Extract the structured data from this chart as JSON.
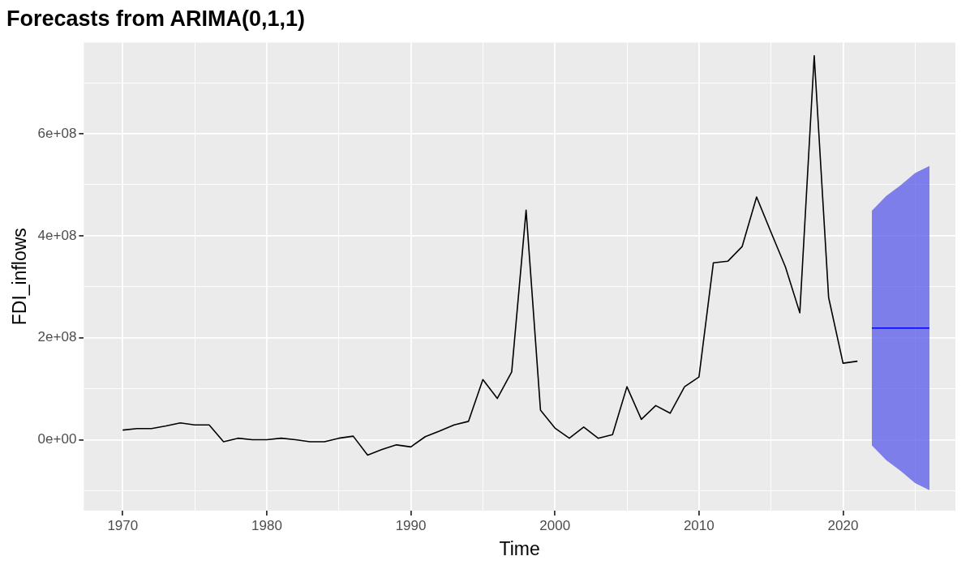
{
  "chart_data": {
    "type": "line",
    "title": "Forecasts from ARIMA(0,1,1)",
    "xlabel": "Time",
    "ylabel": "FDI_inflows",
    "xlim": [
      1967.3,
      2027.8
    ],
    "xticks": [
      1970,
      {
        "value": 1975,
        "label": null
      },
      1980,
      {
        "value": 1985,
        "label": null
      },
      1990,
      {
        "value": 1995,
        "label": null
      },
      2000,
      {
        "value": 2005,
        "label": null
      },
      2010,
      {
        "value": 2015,
        "label": null
      },
      2020,
      {
        "value": 2025,
        "label": null
      }
    ],
    "ylim": [
      -139000000,
      779000000
    ],
    "yticks": [
      {
        "value": -100000000,
        "label": null
      },
      {
        "value": 0,
        "label": "0e+00"
      },
      {
        "value": 100000000,
        "label": null
      },
      {
        "value": 200000000,
        "label": "2e+08"
      },
      {
        "value": 300000000,
        "label": null
      },
      {
        "value": 400000000,
        "label": "4e+08"
      },
      {
        "value": 500000000,
        "label": null
      },
      {
        "value": 600000000,
        "label": "6e+08"
      },
      {
        "value": 700000000,
        "label": null
      }
    ],
    "grid": true,
    "legend": false,
    "series": [
      {
        "color": "#000000",
        "x": [
          1970,
          1971,
          1972,
          1973,
          1974,
          1975,
          1976,
          1977,
          1978,
          1979,
          1980,
          1981,
          1982,
          1983,
          1984,
          1985,
          1986,
          1987,
          1988,
          1989,
          1990,
          1991,
          1992,
          1993,
          1994,
          1995,
          1996,
          1997,
          1998,
          1999,
          2000,
          2001,
          2002,
          2003,
          2004,
          2005,
          2006,
          2007,
          2008,
          2009,
          2010,
          2011,
          2012,
          2013,
          2014,
          2015,
          2016,
          2017,
          2018,
          2019,
          2020,
          2021
        ],
        "values": [
          19000000,
          22000000,
          22000000,
          27000000,
          33000000,
          29000000,
          29000000,
          -4000000,
          3000000,
          0,
          0,
          3000000,
          0,
          -4000000,
          -4000000,
          3000000,
          7000000,
          -30000000,
          -19000000,
          -10000000,
          -14000000,
          6000000,
          17000000,
          29000000,
          36000000,
          118000000,
          81000000,
          133000000,
          450000000,
          58000000,
          23000000,
          3000000,
          25000000,
          3000000,
          10000000,
          104000000,
          40000000,
          67000000,
          52000000,
          104000000,
          123000000,
          347000000,
          350000000,
          379000000,
          476000000,
          407000000,
          339000000,
          249000000,
          753000000,
          279000000,
          150000000,
          154000000
        ]
      },
      {
        "color": "#0000ff",
        "x": [
          2022,
          2023,
          2024,
          2025,
          2026
        ],
        "values": [
          219000000,
          219000000,
          219000000,
          219000000,
          219000000
        ],
        "lower": [
          -11000000,
          -40000000,
          -61000000,
          -85000000,
          -99000000
        ],
        "upper": [
          449000000,
          478000000,
          499000000,
          523000000,
          537000000
        ]
      }
    ]
  }
}
